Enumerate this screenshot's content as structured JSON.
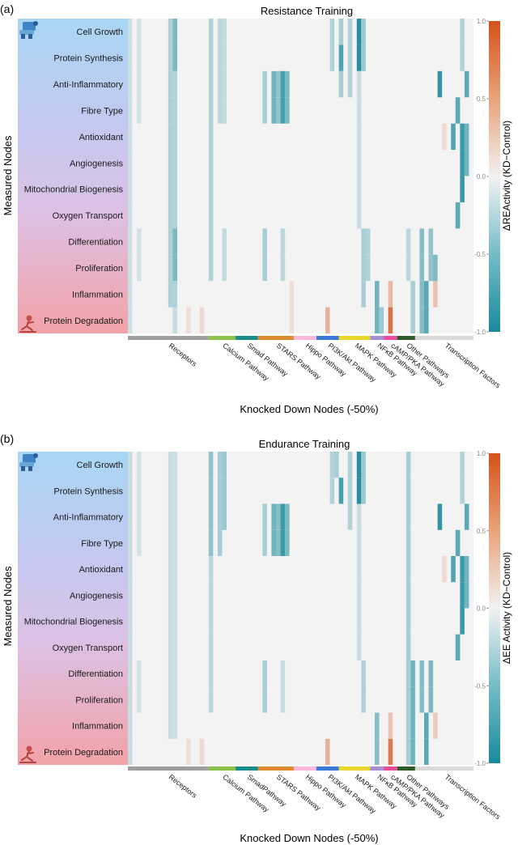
{
  "chart_data": [
    {
      "type": "heatmap",
      "panel_label": "(a)",
      "title": "Resistance Training",
      "xlabel": "Knocked Down Nodes (-50%)",
      "ylabel": "Measured Nodes",
      "colorbar_label": "ΔREActivity (KD−Control)",
      "colorbar_ticks": [
        "1.0",
        "0.5",
        "0.0",
        "-0.5",
        "-1.0"
      ],
      "value_range": [
        -1.0,
        1.0
      ],
      "rows": [
        "Cell Growth",
        "Protein Synthesis",
        "Anti-Inflammatory",
        "Fibre Type",
        "Antioxidant",
        "Angiogenesis",
        "Mitochondrial Biogenesis",
        "Oxygen Transport",
        "Differentiation",
        "Proliferation",
        "Inflammation",
        "Protein Degradation"
      ],
      "row_icons": [
        "muscle-growth-icon",
        "muscle-wasting-icon"
      ],
      "groups": [
        {
          "label": "Receptors",
          "start": 0,
          "count": 18,
          "color": "#9e9e9e"
        },
        {
          "label": "Calcium Pathway",
          "start": 18,
          "count": 6,
          "color": "#8bc34a"
        },
        {
          "label": "Smad Pathway",
          "start": 24,
          "count": 5,
          "color": "#1a8c8c"
        },
        {
          "label": "STARS Pathway",
          "start": 29,
          "count": 8,
          "color": "#e08a2e"
        },
        {
          "label": "Hippo Pathway",
          "start": 37,
          "count": 5,
          "color": "#f9b8dc"
        },
        {
          "label": "PI3K/Akt Pathway",
          "start": 42,
          "count": 5,
          "color": "#3b78d8"
        },
        {
          "label": "MAPK Pathway",
          "start": 47,
          "count": 7,
          "color": "#e8d62c"
        },
        {
          "label": "NFκB Pathway",
          "start": 54,
          "count": 3,
          "color": "#a88ed6"
        },
        {
          "label": "cAMP/PKA Pathway",
          "start": 57,
          "count": 3,
          "color": "#e84c9a"
        },
        {
          "label": "Other Pathways",
          "start": 60,
          "count": 4,
          "color": "#2f5a2a"
        },
        {
          "label": "Transcription Factors",
          "start": 64,
          "count": 13,
          "color": "#d9d9d9"
        }
      ],
      "n_columns": 77,
      "cells": [
        {
          "col": 0,
          "rows": [
            0,
            1,
            2,
            3,
            4,
            5,
            6,
            7,
            8,
            9,
            10,
            11
          ],
          "value": -0.18
        },
        {
          "col": 2,
          "rows": [
            0,
            1,
            2,
            3,
            8,
            9
          ],
          "value": -0.15
        },
        {
          "col": 9,
          "rows": [
            0,
            1,
            2,
            3,
            4,
            5,
            6,
            7,
            8,
            9,
            10
          ],
          "value": -0.32
        },
        {
          "col": 10,
          "rows": [
            0,
            1,
            8,
            9
          ],
          "value": -0.55
        },
        {
          "col": 10,
          "rows": [
            2,
            3,
            4,
            5,
            6,
            7,
            10
          ],
          "value": -0.3
        },
        {
          "col": 10,
          "rows": [
            11
          ],
          "value": -0.2
        },
        {
          "col": 13,
          "rows": [
            11
          ],
          "value": 0.12
        },
        {
          "col": 16,
          "rows": [
            11
          ],
          "value": 0.15
        },
        {
          "col": 18,
          "rows": [
            0,
            1,
            2,
            3,
            4,
            5,
            6,
            7,
            8,
            9
          ],
          "value": -0.3
        },
        {
          "col": 20,
          "rows": [
            0,
            1,
            2,
            3
          ],
          "value": -0.25
        },
        {
          "col": 21,
          "rows": [
            0,
            1,
            2,
            3,
            8,
            9
          ],
          "value": -0.22
        },
        {
          "col": 30,
          "rows": [
            2,
            3,
            8,
            9
          ],
          "value": -0.35
        },
        {
          "col": 32,
          "rows": [
            2,
            3
          ],
          "value": -0.6
        },
        {
          "col": 33,
          "rows": [
            2,
            3
          ],
          "value": -0.45
        },
        {
          "col": 34,
          "rows": [
            2,
            3
          ],
          "value": -0.8
        },
        {
          "col": 35,
          "rows": [
            2,
            3
          ],
          "value": -0.55
        },
        {
          "col": 34,
          "rows": [
            8,
            9
          ],
          "value": -0.25
        },
        {
          "col": 36,
          "rows": [
            10,
            11
          ],
          "value": 0.12
        },
        {
          "col": 44,
          "rows": [
            11
          ],
          "value": 0.4
        },
        {
          "col": 45,
          "rows": [
            0,
            1
          ],
          "value": -0.3
        },
        {
          "col": 47,
          "rows": [
            1
          ],
          "value": -0.75
        },
        {
          "col": 47,
          "rows": [
            0,
            2
          ],
          "value": -0.35
        },
        {
          "col": 49,
          "rows": [
            0,
            1,
            2
          ],
          "value": -0.3
        },
        {
          "col": 51,
          "rows": [
            0,
            1
          ],
          "value": -0.95
        },
        {
          "col": 51,
          "rows": [
            2,
            3,
            4,
            5,
            6,
            7
          ],
          "value": -0.2
        },
        {
          "col": 52,
          "rows": [
            0,
            1
          ],
          "value": -0.4
        },
        {
          "col": 52,
          "rows": [
            8,
            9,
            10
          ],
          "value": -0.35
        },
        {
          "col": 53,
          "rows": [
            8,
            9
          ],
          "value": -0.3
        },
        {
          "col": 55,
          "rows": [
            10,
            11
          ],
          "value": -0.6
        },
        {
          "col": 56,
          "rows": [
            11
          ],
          "value": -0.4
        },
        {
          "col": 58,
          "rows": [
            10
          ],
          "value": 0.35
        },
        {
          "col": 58,
          "rows": [
            11
          ],
          "value": 0.8
        },
        {
          "col": 62,
          "rows": [
            8,
            9
          ],
          "value": -0.25
        },
        {
          "col": 63,
          "rows": [
            10,
            11
          ],
          "value": -0.35
        },
        {
          "col": 65,
          "rows": [
            8,
            9,
            10,
            11
          ],
          "value": -0.5
        },
        {
          "col": 66,
          "rows": [
            10,
            11
          ],
          "value": -0.7
        },
        {
          "col": 67,
          "rows": [
            8,
            9
          ],
          "value": -0.45
        },
        {
          "col": 68,
          "rows": [
            9
          ],
          "value": -0.55
        },
        {
          "col": 68,
          "rows": [
            10
          ],
          "value": 0.3
        },
        {
          "col": 69,
          "rows": [
            2
          ],
          "value": -0.9
        },
        {
          "col": 70,
          "rows": [
            4
          ],
          "value": 0.15
        },
        {
          "col": 72,
          "rows": [
            4
          ],
          "value": -0.75
        },
        {
          "col": 73,
          "rows": [
            3,
            7
          ],
          "value": -0.7
        },
        {
          "col": 74,
          "rows": [
            4,
            5,
            6
          ],
          "value": -0.85
        },
        {
          "col": 74,
          "rows": [
            0,
            1
          ],
          "value": -0.3
        },
        {
          "col": 75,
          "rows": [
            2
          ],
          "value": -0.7
        },
        {
          "col": 75,
          "rows": [
            4,
            5
          ],
          "value": -0.6
        }
      ]
    },
    {
      "type": "heatmap",
      "panel_label": "(b)",
      "title": "Endurance Training",
      "xlabel": "Knocked Down Nodes (-50%)",
      "ylabel": "Measured Nodes",
      "colorbar_label": "ΔEE Activity (KD−Control)",
      "colorbar_ticks": [
        "1.0",
        "0.5",
        "0.0",
        "-0.5",
        "-1.0"
      ],
      "value_range": [
        -1.0,
        1.0
      ],
      "rows": [
        "Cell Growth",
        "Protein Synthesis",
        "Anti-Inflammatory",
        "Fibre Type",
        "Antioxidant",
        "Angiogenesis",
        "Mitochondrial Biogenesis",
        "Oxygen Transport",
        "Differentiation",
        "Proliferation",
        "Inflammation",
        "Protein Degradation"
      ],
      "row_icons": [
        "muscle-growth-icon",
        "muscle-wasting-icon"
      ],
      "groups": [
        {
          "label": "Receptors",
          "start": 0,
          "count": 18,
          "color": "#9e9e9e"
        },
        {
          "label": "Calcium Pathway",
          "start": 18,
          "count": 6,
          "color": "#8bc34a"
        },
        {
          "label": "SmadPathway",
          "start": 24,
          "count": 5,
          "color": "#1a8c8c"
        },
        {
          "label": "STARS Pathway",
          "start": 29,
          "count": 8,
          "color": "#e08a2e"
        },
        {
          "label": "Hippo Pathway",
          "start": 37,
          "count": 5,
          "color": "#f9b8dc"
        },
        {
          "label": "PI3K/Akt Pathway",
          "start": 42,
          "count": 5,
          "color": "#3b78d8"
        },
        {
          "label": "MAPK Pathway",
          "start": 47,
          "count": 7,
          "color": "#e8d62c"
        },
        {
          "label": "NFκB Pathway",
          "start": 54,
          "count": 3,
          "color": "#a88ed6"
        },
        {
          "label": "cAMP/PKA Pathway",
          "start": 57,
          "count": 3,
          "color": "#e84c9a"
        },
        {
          "label": "Other Pathways",
          "start": 60,
          "count": 4,
          "color": "#2f5a2a"
        },
        {
          "label": "Transcription Factors",
          "start": 64,
          "count": 13,
          "color": "#d9d9d9"
        }
      ],
      "n_columns": 77,
      "cells": [
        {
          "col": 0,
          "rows": [
            0,
            1,
            2,
            3,
            4,
            5,
            6,
            7,
            8,
            9,
            10,
            11
          ],
          "value": -0.2
        },
        {
          "col": 2,
          "rows": [
            0,
            1,
            2,
            3,
            8,
            9
          ],
          "value": -0.15
        },
        {
          "col": 9,
          "rows": [
            0,
            1,
            2,
            3,
            4,
            5,
            6,
            7,
            8,
            9,
            10
          ],
          "value": -0.2
        },
        {
          "col": 10,
          "rows": [
            0,
            1,
            2,
            3,
            4,
            5,
            6,
            7,
            8,
            9,
            10
          ],
          "value": -0.18
        },
        {
          "col": 13,
          "rows": [
            11
          ],
          "value": 0.12
        },
        {
          "col": 16,
          "rows": [
            11
          ],
          "value": 0.15
        },
        {
          "col": 18,
          "rows": [
            0,
            1,
            2,
            3
          ],
          "value": -0.45
        },
        {
          "col": 18,
          "rows": [
            4,
            5,
            6,
            7,
            8,
            9
          ],
          "value": -0.25
        },
        {
          "col": 20,
          "rows": [
            0,
            1,
            2,
            3
          ],
          "value": -0.35
        },
        {
          "col": 21,
          "rows": [
            0,
            1,
            2
          ],
          "value": -0.4
        },
        {
          "col": 30,
          "rows": [
            2,
            3,
            8,
            9
          ],
          "value": -0.35
        },
        {
          "col": 32,
          "rows": [
            2,
            3
          ],
          "value": -0.6
        },
        {
          "col": 33,
          "rows": [
            2,
            3
          ],
          "value": -0.5
        },
        {
          "col": 34,
          "rows": [
            2,
            3
          ],
          "value": -0.85
        },
        {
          "col": 35,
          "rows": [
            2,
            3
          ],
          "value": -0.55
        },
        {
          "col": 34,
          "rows": [
            8,
            9
          ],
          "value": -0.2
        },
        {
          "col": 44,
          "rows": [
            11
          ],
          "value": 0.4
        },
        {
          "col": 45,
          "rows": [
            0,
            1
          ],
          "value": -0.3
        },
        {
          "col": 47,
          "rows": [
            1
          ],
          "value": -0.8
        },
        {
          "col": 46,
          "rows": [
            0
          ],
          "value": -0.35
        },
        {
          "col": 49,
          "rows": [
            0,
            1,
            2
          ],
          "value": -0.3
        },
        {
          "col": 51,
          "rows": [
            0,
            1
          ],
          "value": -0.95
        },
        {
          "col": 51,
          "rows": [
            2,
            3,
            4,
            5,
            6,
            7
          ],
          "value": -0.2
        },
        {
          "col": 52,
          "rows": [
            0,
            1
          ],
          "value": -0.4
        },
        {
          "col": 52,
          "rows": [
            8,
            9
          ],
          "value": -0.3
        },
        {
          "col": 55,
          "rows": [
            10,
            11
          ],
          "value": -0.5
        },
        {
          "col": 58,
          "rows": [
            10
          ],
          "value": 0.3
        },
        {
          "col": 58,
          "rows": [
            11
          ],
          "value": 0.75
        },
        {
          "col": 62,
          "rows": [
            0,
            1,
            2,
            3,
            4,
            5,
            6,
            7,
            8,
            9,
            10,
            11
          ],
          "value": -0.35
        },
        {
          "col": 63,
          "rows": [
            8,
            9,
            10,
            11
          ],
          "value": -0.6
        },
        {
          "col": 65,
          "rows": [
            8,
            9
          ],
          "value": -0.5
        },
        {
          "col": 66,
          "rows": [
            10,
            11
          ],
          "value": -0.7
        },
        {
          "col": 67,
          "rows": [
            8,
            9
          ],
          "value": -0.55
        },
        {
          "col": 68,
          "rows": [
            10
          ],
          "value": 0.25
        },
        {
          "col": 69,
          "rows": [
            2
          ],
          "value": -0.9
        },
        {
          "col": 70,
          "rows": [
            4
          ],
          "value": 0.15
        },
        {
          "col": 72,
          "rows": [
            4
          ],
          "value": -0.75
        },
        {
          "col": 73,
          "rows": [
            3,
            7
          ],
          "value": -0.7
        },
        {
          "col": 74,
          "rows": [
            4,
            5,
            6
          ],
          "value": -0.85
        },
        {
          "col": 74,
          "rows": [
            0,
            1
          ],
          "value": -0.3
        },
        {
          "col": 75,
          "rows": [
            2
          ],
          "value": -0.7
        },
        {
          "col": 75,
          "rows": [
            4,
            5
          ],
          "value": -0.6
        }
      ]
    }
  ]
}
